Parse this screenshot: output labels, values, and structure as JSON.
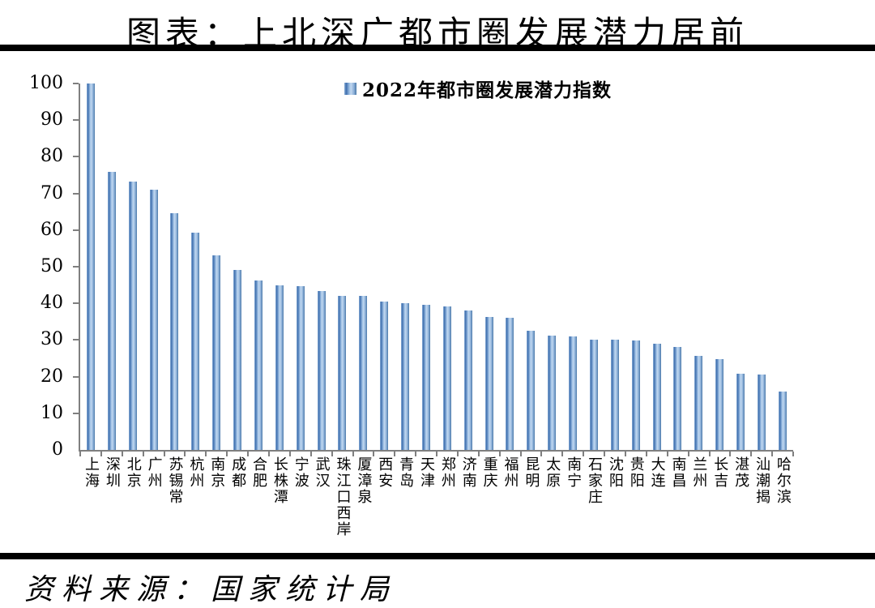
{
  "title": "图表：上北深广都市圈发展潜力居前",
  "legend": {
    "label": "2022年都市圈发展潜力指数"
  },
  "source": {
    "label": "资料来源：国家统计局"
  },
  "colors": {
    "bar_main": "#4f81bd",
    "bar_gradient": [
      "#8fb2da",
      "#3f6fae",
      "#9dbfe4",
      "#c2d8f0",
      "#8fb2da",
      "#4a78a8"
    ],
    "axis": "#7f7f7f",
    "rule": "#000000",
    "text": "#000000"
  },
  "chart_data": {
    "type": "bar",
    "title": "2022年都市圈发展潜力指数",
    "xlabel": "",
    "ylabel": "",
    "ylim": [
      0,
      100
    ],
    "ytick_interval": 10,
    "grid": false,
    "legend_position": "top-center",
    "categories": [
      "上海",
      "深圳",
      "北京",
      "广州",
      "苏锡常",
      "杭州",
      "南京",
      "成都",
      "合肥",
      "长株潭",
      "宁波",
      "武汉",
      "珠江口西岸",
      "厦漳泉",
      "西安",
      "青岛",
      "天津",
      "郑州",
      "济南",
      "重庆",
      "福州",
      "昆明",
      "太原",
      "南宁",
      "石家庄",
      "沈阳",
      "贵阳",
      "大连",
      "南昌",
      "兰州",
      "长吉",
      "湛茂",
      "汕潮揭",
      "哈尔滨"
    ],
    "values": [
      100,
      76.0,
      73.3,
      71.0,
      64.7,
      59.3,
      53.0,
      49.2,
      46.2,
      45.0,
      44.6,
      43.3,
      42.1,
      42.0,
      40.5,
      40.0,
      39.7,
      39.2,
      38.0,
      36.4,
      36.0,
      32.6,
      31.3,
      30.9,
      30.1,
      30.0,
      29.8,
      29.0,
      28.2,
      25.6,
      24.8,
      20.7,
      20.6,
      16.0
    ]
  }
}
